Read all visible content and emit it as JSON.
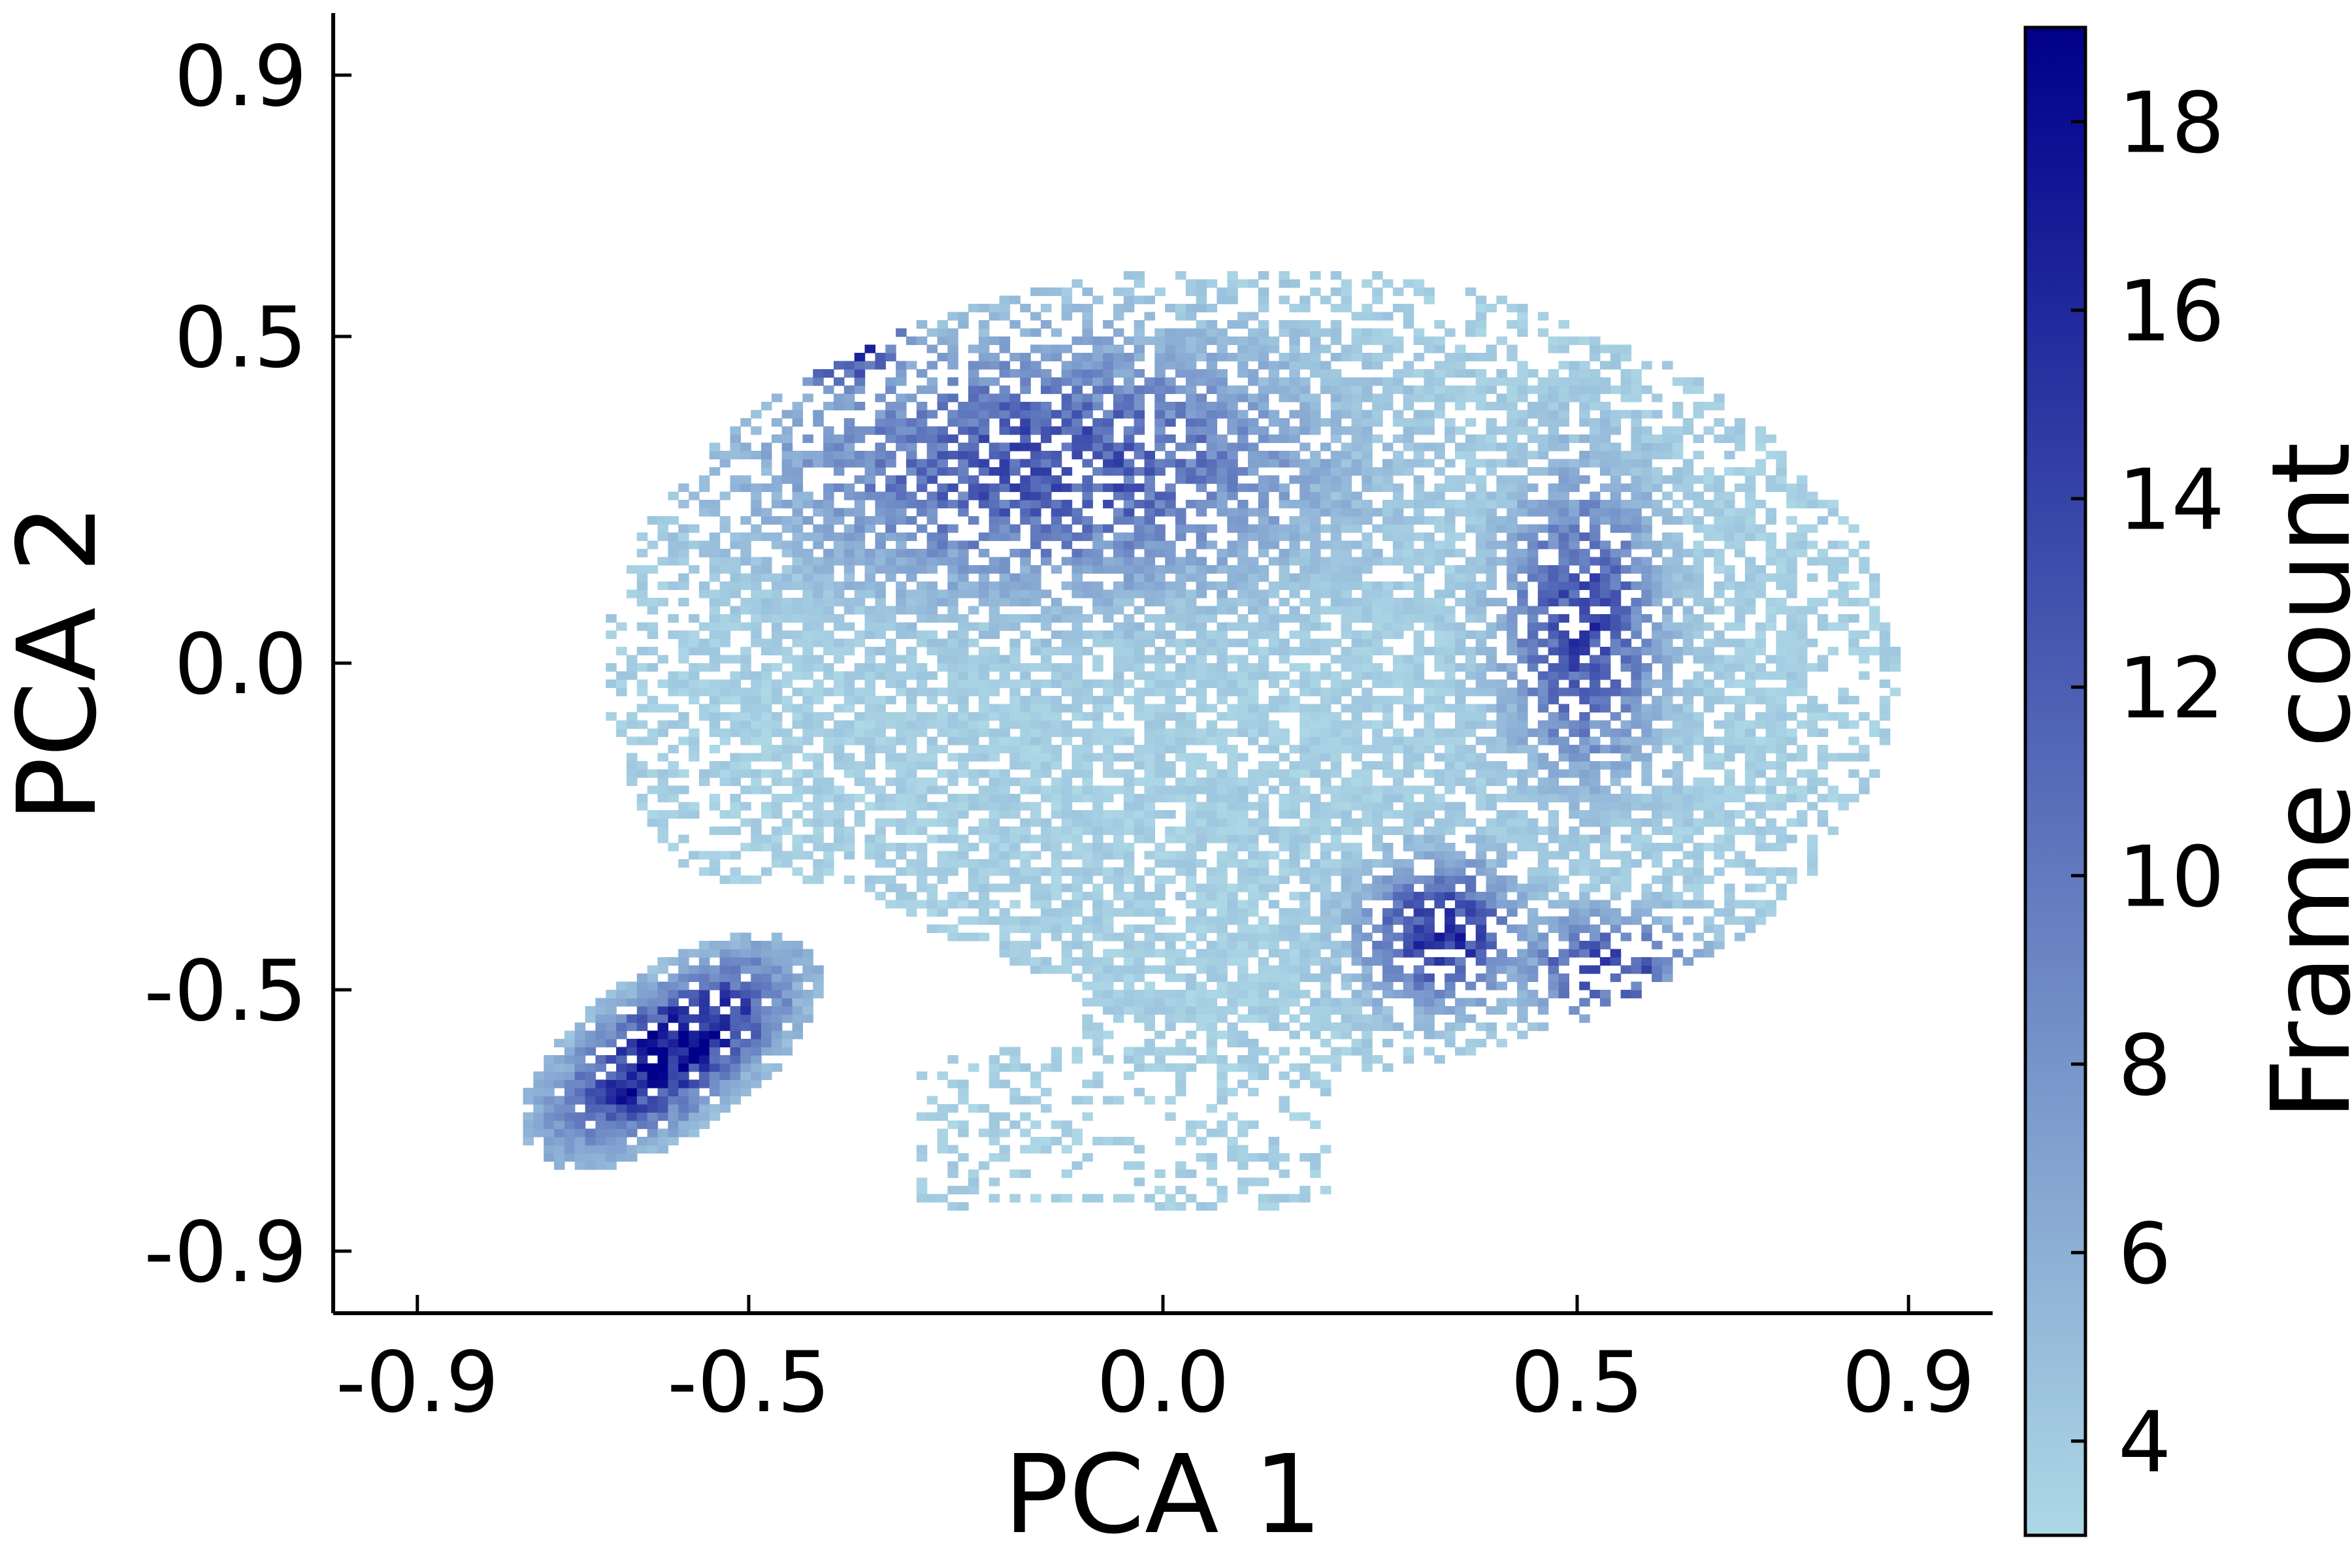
{
  "chart_data": {
    "type": "heatmap",
    "xlabel": "PCA 1",
    "ylabel": "PCA 2",
    "xlim": [
      -1.0,
      1.0
    ],
    "ylim": [
      -1.0,
      1.0
    ],
    "x_ticks": [
      -0.9,
      -0.5,
      0.0,
      0.5,
      0.9
    ],
    "x_tick_labels": [
      "-0.9",
      "-0.5",
      "0.0",
      "0.5",
      "0.9"
    ],
    "y_ticks": [
      -0.9,
      -0.5,
      0.0,
      0.5,
      0.9
    ],
    "y_tick_labels": [
      "-0.9",
      "-0.5",
      "0.0",
      "0.5",
      "0.9"
    ],
    "grid": false,
    "colorbar": {
      "label": "Frame count",
      "min": 3,
      "max": 19,
      "ticks": [
        4,
        6,
        8,
        10,
        12,
        14,
        16,
        18
      ],
      "tick_labels": [
        "4",
        "6",
        "8",
        "10",
        "12",
        "14",
        "16",
        "18"
      ],
      "color_low": "#add8e6",
      "color_high": "#00008b"
    },
    "density_clusters": [
      {
        "x": -0.6,
        "y": -0.6,
        "sx": 0.05,
        "sy": 0.11,
        "angle_deg": -45,
        "peak_count": 19
      },
      {
        "x": -0.39,
        "y": 0.5,
        "sx": 0.05,
        "sy": 0.06,
        "angle_deg": 0,
        "peak_count": 16
      },
      {
        "x": 0.33,
        "y": -0.42,
        "sx": 0.06,
        "sy": 0.07,
        "angle_deg": 0,
        "peak_count": 14
      },
      {
        "x": 0.53,
        "y": -0.47,
        "sx": 0.07,
        "sy": 0.05,
        "angle_deg": 0,
        "peak_count": 12
      },
      {
        "x": 0.5,
        "y": 0.05,
        "sx": 0.06,
        "sy": 0.14,
        "angle_deg": 0,
        "peak_count": 12
      },
      {
        "x": -0.15,
        "y": 0.3,
        "sx": 0.2,
        "sy": 0.12,
        "angle_deg": 0,
        "peak_count": 11
      }
    ]
  }
}
